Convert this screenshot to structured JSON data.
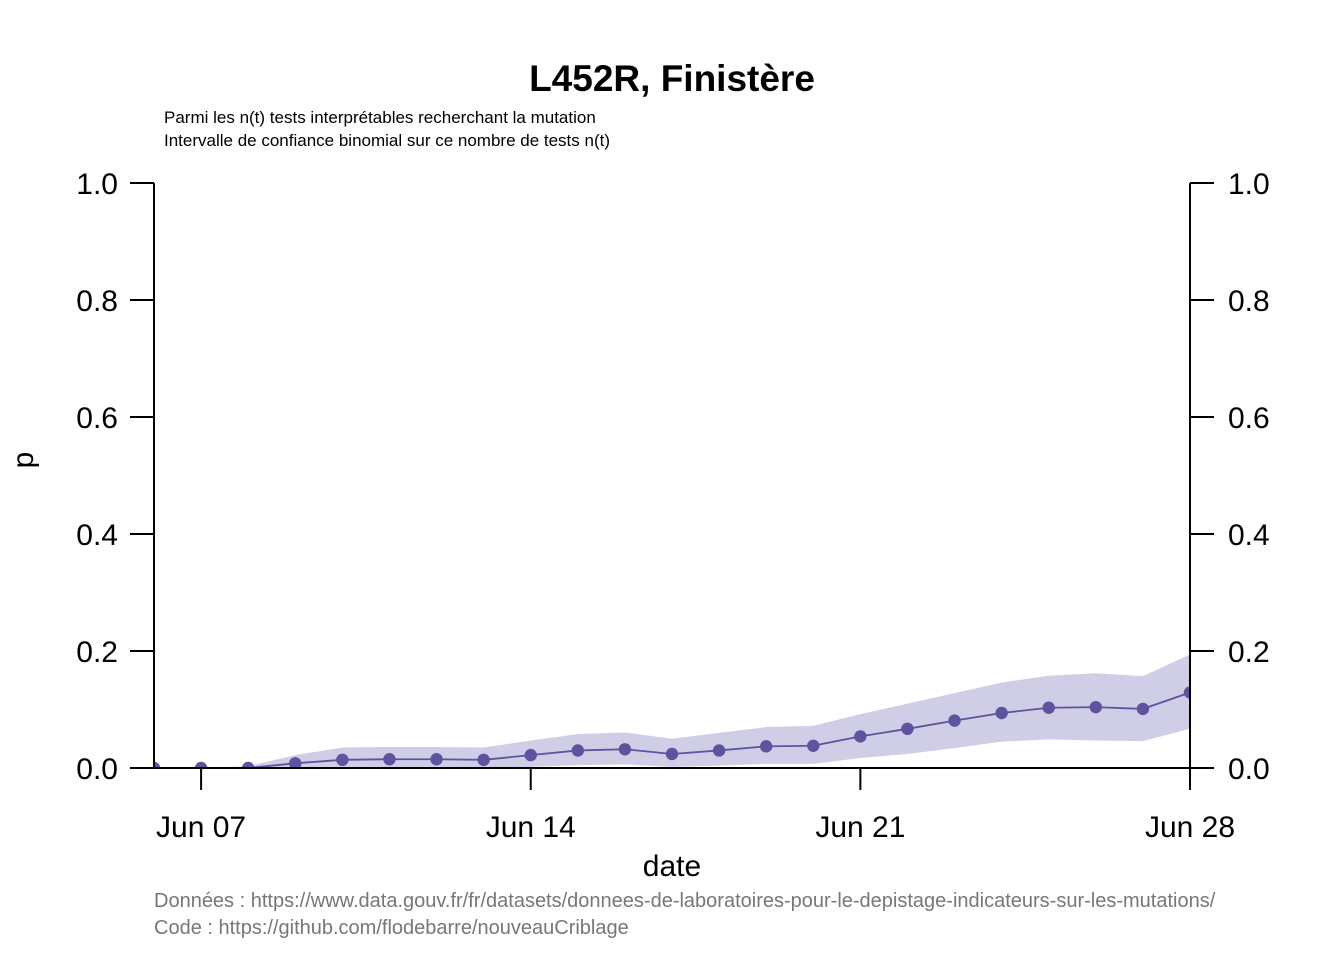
{
  "chart_data": {
    "type": "line",
    "title": "L452R, Finistère",
    "subtitle_lines": [
      "Parmi les n(t) tests interprétables recherchant la mutation",
      "Intervalle de confiance binomial sur ce nombre de tests n(t)"
    ],
    "xlabel": "date",
    "ylabel": "p",
    "x_ticks": [
      {
        "date": "2021-06-07",
        "label": "Jun 07"
      },
      {
        "date": "2021-06-14",
        "label": "Jun 14"
      },
      {
        "date": "2021-06-21",
        "label": "Jun 21"
      },
      {
        "date": "2021-06-28",
        "label": "Jun 28"
      }
    ],
    "y_ticks": [
      "0.0",
      "0.2",
      "0.4",
      "0.6",
      "0.8",
      "1.0"
    ],
    "ylim": [
      0,
      1
    ],
    "xlim": [
      "2021-06-06",
      "2021-06-28"
    ],
    "grid": false,
    "colors": {
      "line": "#5e539f",
      "band": "#d0cee6"
    },
    "series": [
      {
        "x": [
          "2021-06-06",
          "2021-06-07",
          "2021-06-08",
          "2021-06-09",
          "2021-06-10",
          "2021-06-11",
          "2021-06-12",
          "2021-06-13",
          "2021-06-14",
          "2021-06-15",
          "2021-06-16",
          "2021-06-17",
          "2021-06-18",
          "2021-06-19",
          "2021-06-20",
          "2021-06-21",
          "2021-06-22",
          "2021-06-23",
          "2021-06-24",
          "2021-06-25",
          "2021-06-26",
          "2021-06-27",
          "2021-06-28"
        ],
        "values": [
          0.0,
          0.0,
          0.0,
          0.008,
          0.014,
          0.015,
          0.015,
          0.014,
          0.022,
          0.03,
          0.032,
          0.024,
          0.03,
          0.037,
          0.038,
          0.054,
          0.067,
          0.081,
          0.094,
          0.103,
          0.104,
          0.101,
          0.129
        ],
        "ci_lower": [
          0.0,
          0.0,
          0.0,
          0.0,
          0.0,
          0.0,
          0.0,
          0.0,
          0.002,
          0.005,
          0.006,
          0.002,
          0.004,
          0.007,
          0.007,
          0.017,
          0.024,
          0.034,
          0.045,
          0.049,
          0.047,
          0.046,
          0.067
        ],
        "ci_upper": [
          0.0,
          0.0,
          0.003,
          0.022,
          0.035,
          0.036,
          0.036,
          0.035,
          0.047,
          0.058,
          0.061,
          0.05,
          0.06,
          0.07,
          0.072,
          0.092,
          0.11,
          0.128,
          0.146,
          0.158,
          0.162,
          0.157,
          0.194
        ]
      }
    ]
  },
  "footer": {
    "data_source": "Données : https://www.data.gouv.fr/fr/datasets/donnees-de-laboratoires-pour-le-depistage-indicateurs-sur-les-mutations/",
    "code_source": "Code : https://github.com/flodebarre/nouveauCriblage"
  }
}
